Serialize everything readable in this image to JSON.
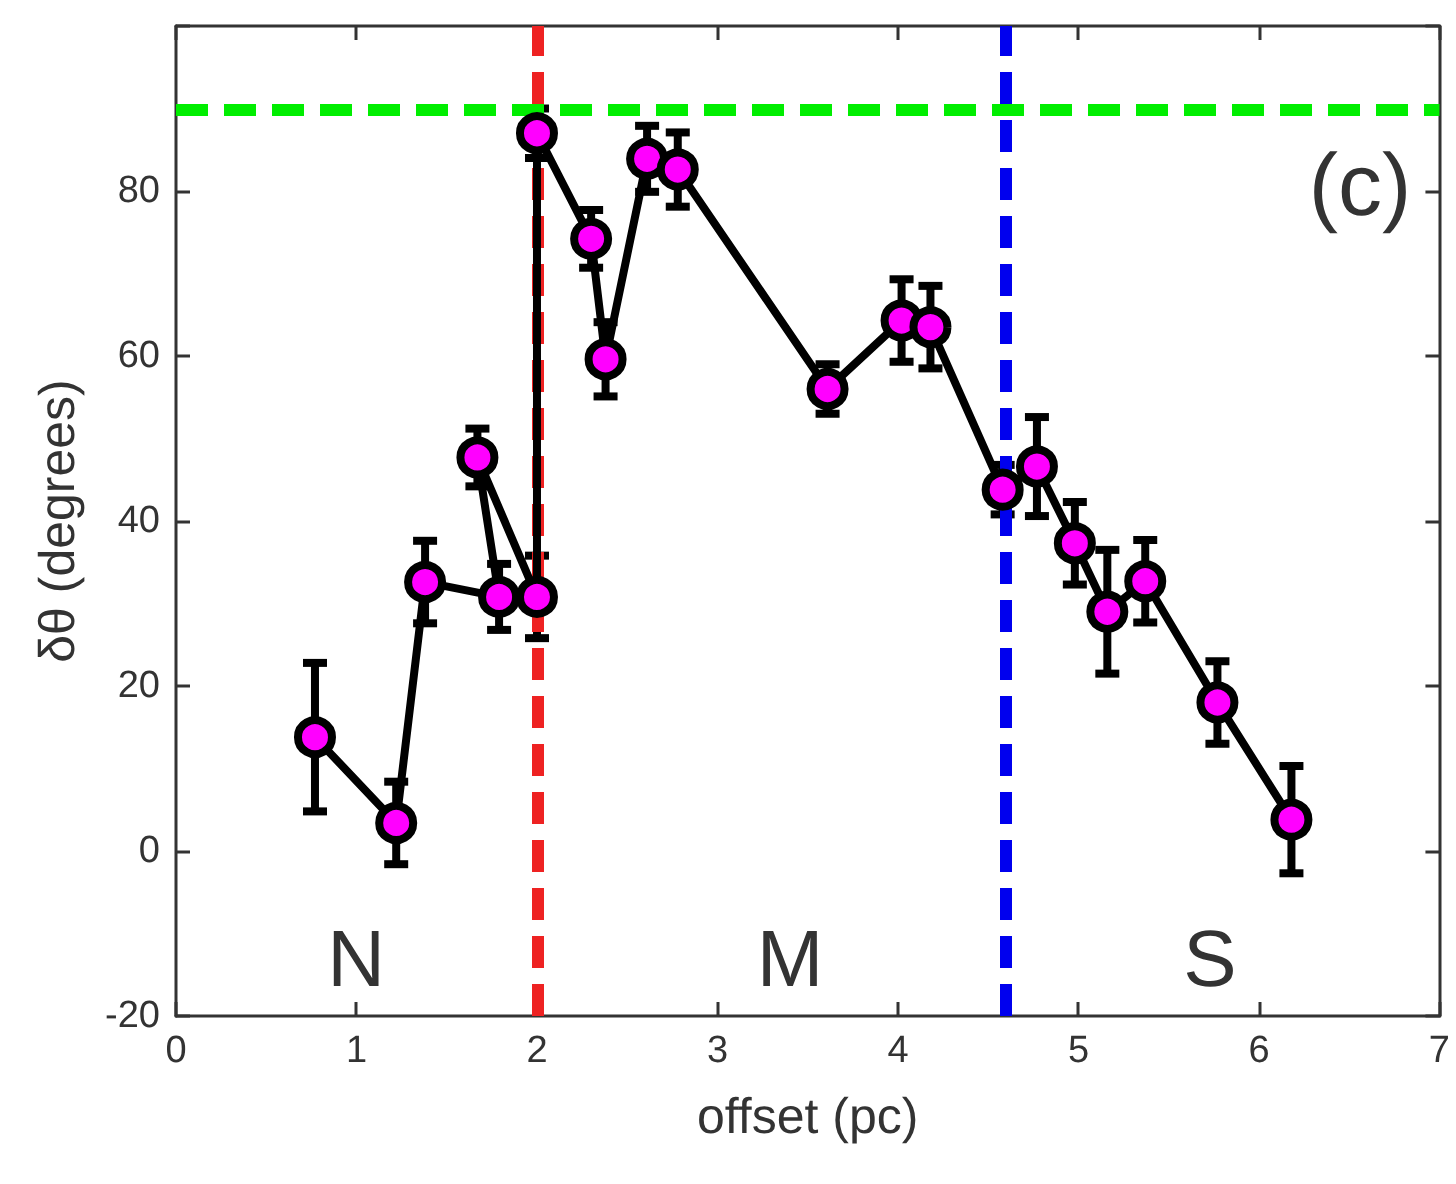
{
  "chart_data": {
    "type": "line",
    "xlabel": "offset (pc)",
    "ylabel": "δθ (degrees)",
    "xlim": [
      0,
      7
    ],
    "xticks": [
      0,
      1,
      2,
      3,
      4,
      5,
      6,
      7
    ],
    "ylim": [
      -20,
      100
    ],
    "yticks": [
      -20,
      0,
      20,
      40,
      60,
      80,
      {
        "value": 100,
        "label": null
      }
    ],
    "grid": false,
    "marker": "circle",
    "line_style": "solid",
    "series": [
      {
        "color": "#000000",
        "colors": [
          "#ff00ff",
          "#ff00ff",
          "#ff00ff",
          "#ff00ff",
          "#ff00ff",
          "#ff00ff",
          "#ff00ff",
          "#ff00ff",
          "#ff00ff",
          "#ff00ff",
          "#ff00ff",
          "#ff00ff",
          "#ff00ff",
          "#ff00ff",
          "#ff00ff",
          "#ff00ff",
          "#ff00ff",
          "#ff00ff",
          "#ff00ff",
          "#ff00ff",
          "#ff00ff"
        ],
        "x": [
          0.77,
          1.22,
          1.38,
          1.79,
          1.67,
          2.0,
          2.0,
          2.3,
          2.38,
          2.61,
          2.78,
          3.61,
          4.02,
          4.18,
          4.58,
          4.77,
          4.98,
          5.16,
          5.37,
          5.77,
          6.18
        ],
        "values": [
          13.8,
          3.4,
          32.6,
          30.8,
          47.7,
          30.8,
          87.0,
          74.2,
          59.6,
          83.9,
          82.6,
          56.0,
          64.3,
          63.5,
          43.8,
          46.6,
          37.3,
          29.0,
          32.7,
          18.0,
          3.8
        ],
        "errors": [
          9,
          5,
          5,
          4,
          3.5,
          5,
          3,
          3.5,
          4.5,
          4,
          4.5,
          3,
          5,
          5,
          3,
          6,
          5,
          7.5,
          5,
          5,
          6.5
        ]
      }
    ],
    "ref_lines": [
      {
        "axis": "x",
        "value": 2.0,
        "color": "#ee2222",
        "line_style": "dashed"
      },
      {
        "axis": "x",
        "value": 4.6,
        "color": "#0000ee",
        "line_style": "dashed"
      },
      {
        "axis": "y",
        "value": 90,
        "color": "#00ee00",
        "line_style": "dashed"
      }
    ],
    "annotations": [
      "N",
      "M",
      "S",
      "(c)"
    ]
  }
}
